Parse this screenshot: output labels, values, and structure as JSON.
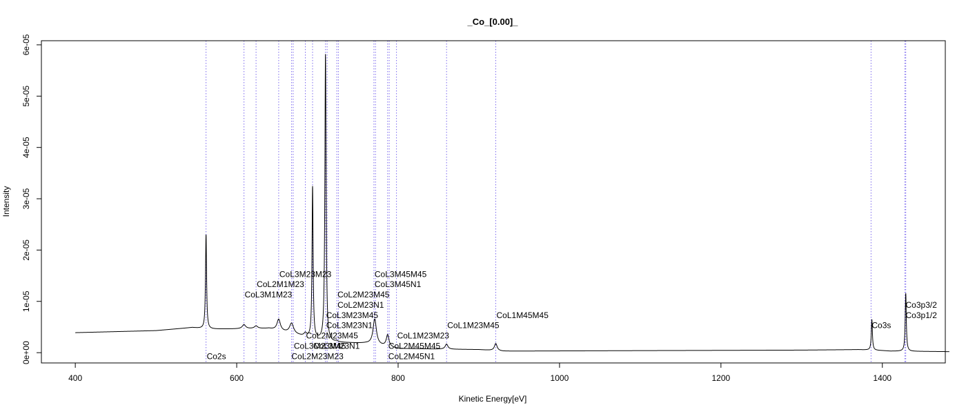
{
  "chart_data": {
    "type": "line",
    "title": "_Co_[0.00]_",
    "xlabel": "Kinetic Energy[eV]",
    "ylabel": "Intensity",
    "xlim": [
      358,
      1478
    ],
    "ylim": [
      -2e-06,
      6.08e-05
    ],
    "x_ticks": [
      400,
      600,
      800,
      1000,
      1200,
      1400
    ],
    "x_tick_labels": [
      "400",
      "600",
      "800",
      "1000",
      "1200",
      "1400"
    ],
    "y_ticks": [
      0,
      1e-05,
      2e-05,
      3e-05,
      4e-05,
      5e-05,
      6e-05
    ],
    "y_tick_labels": [
      "0e+00",
      "1e-05",
      "2e-05",
      "3e-05",
      "4e-05",
      "5e-05",
      "6e-05"
    ],
    "grid": false,
    "line_color": "#000000",
    "marker_line_color": "#7b68ee",
    "baseline": [
      [
        400,
        3.9e-06
      ],
      [
        500,
        4.3e-06
      ],
      [
        545,
        4.9e-06
      ],
      [
        562,
        4.6e-06
      ],
      [
        580,
        4.6e-06
      ],
      [
        640,
        4.7e-06
      ],
      [
        700,
        2.5e-06
      ],
      [
        712,
        2e-06
      ],
      [
        740,
        1.9e-06
      ],
      [
        760,
        1.8e-06
      ],
      [
        800,
        8e-07
      ],
      [
        850,
        7e-07
      ],
      [
        900,
        6e-07
      ],
      [
        930,
        3e-07
      ],
      [
        1100,
        4e-07
      ],
      [
        1300,
        5e-07
      ],
      [
        1370,
        6e-07
      ],
      [
        1400,
        4e-07
      ],
      [
        1410,
        3e-07
      ],
      [
        1483,
        2e-07
      ]
    ],
    "peaks": [
      {
        "x": 562,
        "height": 1.84e-05,
        "width": 0.8
      },
      {
        "x": 609,
        "height": 8e-07,
        "width": 2.5
      },
      {
        "x": 624,
        "height": 5e-07,
        "width": 2.5
      },
      {
        "x": 652,
        "height": 2.2e-06,
        "width": 2.5
      },
      {
        "x": 668,
        "height": 2e-06,
        "width": 3.0
      },
      {
        "x": 685,
        "height": 6e-07,
        "width": 2.0
      },
      {
        "x": 694,
        "height": 2.95e-05,
        "width": 0.8
      },
      {
        "x": 710,
        "height": 5.6e-05,
        "width": 0.9
      },
      {
        "x": 724,
        "height": 2e-07,
        "width": 2.0
      },
      {
        "x": 771,
        "height": 5e-06,
        "width": 2.5
      },
      {
        "x": 787,
        "height": 2.3e-06,
        "width": 2.0
      },
      {
        "x": 860,
        "height": 1e-06,
        "width": 2.0
      },
      {
        "x": 921,
        "height": 1.4e-06,
        "width": 2.0
      },
      {
        "x": 1387,
        "height": 6e-06,
        "width": 0.8
      },
      {
        "x": 1429,
        "height": 1.13e-05,
        "width": 0.8
      }
    ],
    "reference_lines": [
      562,
      609,
      624,
      652,
      668,
      670,
      685,
      694,
      710,
      712,
      724,
      726,
      770,
      772,
      787,
      789,
      798,
      860,
      921,
      1386,
      1428,
      1429
    ],
    "annotations": [
      {
        "text": "Co2s",
        "x": 562,
        "y": -7e-07
      },
      {
        "text": "CoL3M1M23",
        "x": 609,
        "y": 1.13e-05
      },
      {
        "text": "CoL2M1M23",
        "x": 624,
        "y": 1.33e-05
      },
      {
        "text": "CoL3M23M23",
        "x": 652,
        "y": 1.53e-05
      },
      {
        "text": "CoL2M23M23",
        "x": 667,
        "y": -7e-07
      },
      {
        "text": "CoL3M23M45",
        "x": 670,
        "y": 1.3e-06
      },
      {
        "text": "CoL2M23M45",
        "x": 685,
        "y": 3.3e-06
      },
      {
        "text": "CoL3M23N1",
        "x": 694,
        "y": 1.3e-06
      },
      {
        "text": "CoL3M23N1",
        "x": 710,
        "y": 5.3e-06
      },
      {
        "text": "CoL3M23M45",
        "x": 710,
        "y": 7.3e-06
      },
      {
        "text": "CoL2M23N1",
        "x": 724,
        "y": 9.3e-06
      },
      {
        "text": "CoL2M23M45",
        "x": 724,
        "y": 1.13e-05
      },
      {
        "text": "CoL3M45N1",
        "x": 770,
        "y": 1.33e-05
      },
      {
        "text": "CoL3M45M45",
        "x": 770,
        "y": 1.53e-05
      },
      {
        "text": "CoL2M45N1",
        "x": 787,
        "y": -7e-07
      },
      {
        "text": "CoL2M45M45",
        "x": 787,
        "y": 1.3e-06
      },
      {
        "text": "CoL1M23M23",
        "x": 798,
        "y": 3.3e-06
      },
      {
        "text": "CoL1M23M45",
        "x": 860,
        "y": 5.3e-06
      },
      {
        "text": "CoL1M45M45",
        "x": 921,
        "y": 7.3e-06
      },
      {
        "text": "Co3s",
        "x": 1386,
        "y": 5.3e-06
      },
      {
        "text": "Co3p1/2",
        "x": 1428,
        "y": 7.3e-06
      },
      {
        "text": "Co3p3/2",
        "x": 1428,
        "y": 9.3e-06
      }
    ]
  }
}
